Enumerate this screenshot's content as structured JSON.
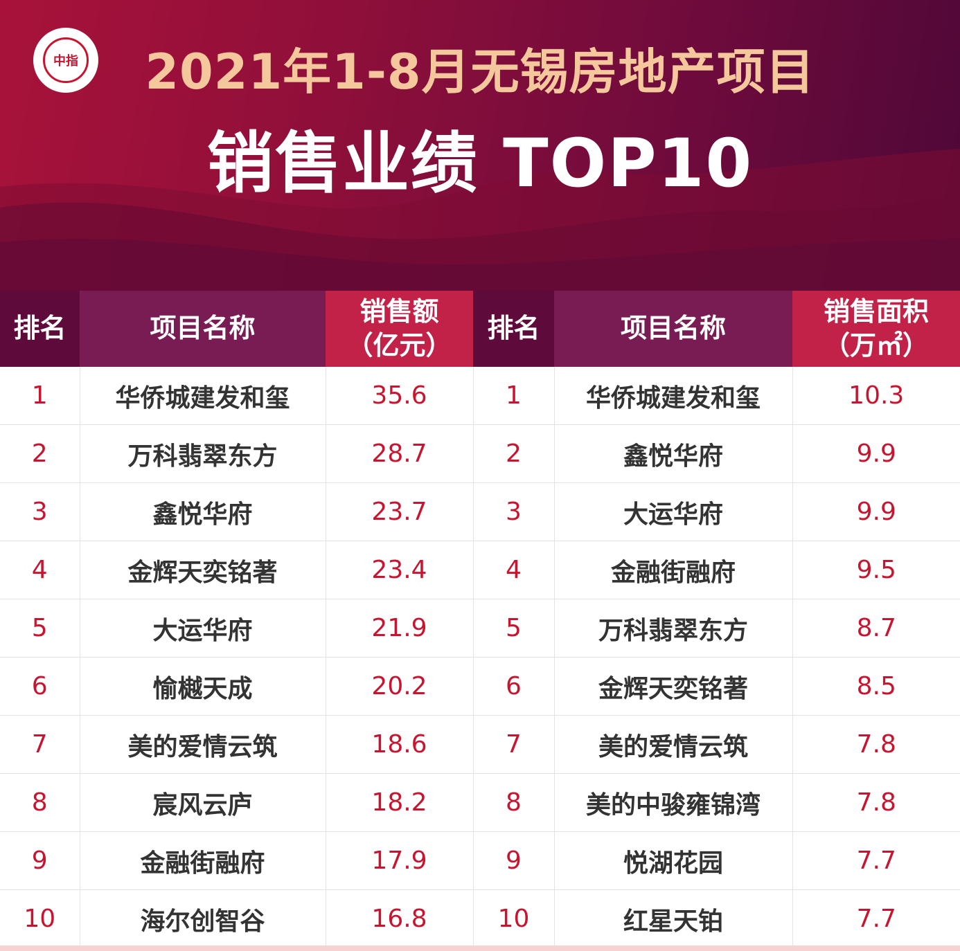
{
  "header": {
    "title_line1": "2021年1-8月无锡房地产项目",
    "title_line2": "销售业绩 TOP10",
    "logo_text": "中指"
  },
  "columns": {
    "left": {
      "rank": "排名",
      "name": "项目名称",
      "value_line1": "销售额",
      "value_line2": "（亿元）"
    },
    "right": {
      "rank": "排名",
      "name": "项目名称",
      "value_line1": "销售面积",
      "value_line2": "（万㎡）"
    }
  },
  "rows": [
    {
      "rank": "1",
      "left_name": "华侨城建发和玺",
      "left_value": "35.6",
      "right_name": "华侨城建发和玺",
      "right_value": "10.3"
    },
    {
      "rank": "2",
      "left_name": "万科翡翠东方",
      "left_value": "28.7",
      "right_name": "鑫悦华府",
      "right_value": "9.9"
    },
    {
      "rank": "3",
      "left_name": "鑫悦华府",
      "left_value": "23.7",
      "right_name": "大运华府",
      "right_value": "9.9"
    },
    {
      "rank": "4",
      "left_name": "金辉天奕铭著",
      "left_value": "23.4",
      "right_name": "金融街融府",
      "right_value": "9.5"
    },
    {
      "rank": "5",
      "left_name": "大运华府",
      "left_value": "21.9",
      "right_name": "万科翡翠东方",
      "right_value": "8.7"
    },
    {
      "rank": "6",
      "left_name": "愉樾天成",
      "left_value": "20.2",
      "right_name": "金辉天奕铭著",
      "right_value": "8.5"
    },
    {
      "rank": "7",
      "left_name": "美的爱情云筑",
      "left_value": "18.6",
      "right_name": "美的爱情云筑",
      "right_value": "7.8"
    },
    {
      "rank": "8",
      "left_name": "宸风云庐",
      "left_value": "18.2",
      "right_name": "美的中骏雍锦湾",
      "right_value": "7.8"
    },
    {
      "rank": "9",
      "left_name": "金融街融府",
      "left_value": "17.9",
      "right_name": "悦湖花园",
      "right_value": "7.7"
    },
    {
      "rank": "10",
      "left_name": "海尔创智谷",
      "left_value": "16.8",
      "right_name": "红星天铂",
      "right_value": "7.7"
    }
  ],
  "colors": {
    "header_start": "#a8123a",
    "header_end": "#4e0838",
    "title_gold": "#f4c79d",
    "rank_red": "#c8142f",
    "col_rank": "#5e0a3a",
    "col_name": "#7a1c54",
    "col_value": "#c22148"
  }
}
